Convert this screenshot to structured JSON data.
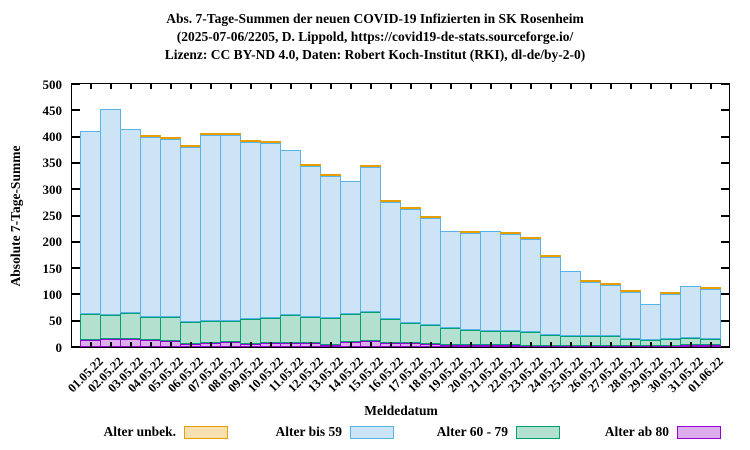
{
  "title": {
    "line1": "Abs. 7-Tage-Summen der neuen COVID-19 Infizierten in SK Rosenheim",
    "line2": "(2025-07-06/2205, D. Lippold, https://covid19-de-stats.sourceforge.io/",
    "line3": "Lizenz: CC BY-ND 4.0, Daten: Robert Koch-Institut (RKI), dl-de/by-2-0)"
  },
  "chart_data": {
    "type": "bar",
    "stacked": true,
    "title": "Abs. 7-Tage-Summen der neuen COVID-19 Infizierten in SK Rosenheim",
    "xlabel": "Meldedatum",
    "ylabel": "Absolute 7-Tage-Summe",
    "ylim": [
      0,
      500
    ],
    "yticks": [
      0,
      50,
      100,
      150,
      200,
      250,
      300,
      350,
      400,
      450,
      500
    ],
    "grid": false,
    "legend_position": "bottom",
    "categories": [
      "01.05.22",
      "02.05.22",
      "03.05.22",
      "04.05.22",
      "05.05.22",
      "06.05.22",
      "07.05.22",
      "08.05.22",
      "09.05.22",
      "10.05.22",
      "11.05.22",
      "12.05.22",
      "13.05.22",
      "14.05.22",
      "15.05.22",
      "16.05.22",
      "17.05.22",
      "18.05.22",
      "19.05.22",
      "20.05.22",
      "21.05.22",
      "22.05.22",
      "23.05.22",
      "24.05.22",
      "25.05.22",
      "26.05.22",
      "27.05.22",
      "28.05.22",
      "29.05.22",
      "30.05.22",
      "31.05.22",
      "01.06.22"
    ],
    "series": [
      {
        "name": "Alter unbek.",
        "fill": "#f6e0b0",
        "border": "#e69f00",
        "values": [
          0,
          0,
          0,
          2,
          2,
          2,
          2,
          2,
          2,
          2,
          0,
          2,
          2,
          0,
          2,
          2,
          2,
          2,
          0,
          2,
          0,
          2,
          2,
          2,
          0,
          2,
          2,
          2,
          0,
          2,
          0,
          2
        ]
      },
      {
        "name": "Alter bis 59",
        "fill": "#cce4f5",
        "border": "#56b4e9",
        "values": [
          348,
          392,
          349,
          343,
          339,
          333,
          354,
          354,
          336,
          331,
          314,
          288,
          270,
          253,
          276,
          223,
          216,
          203,
          184,
          184,
          189,
          183,
          178,
          149,
          123,
          103,
          97,
          89,
          68,
          85,
          98,
          95
        ]
      },
      {
        "name": "Alter 60 - 79",
        "fill": "#b4e0d0",
        "border": "#009e73",
        "values": [
          50,
          46,
          50,
          43,
          45,
          42,
          41,
          40,
          47,
          48,
          53,
          49,
          52,
          53,
          56,
          45,
          39,
          36,
          33,
          29,
          28,
          28,
          26,
          21,
          20,
          20,
          19,
          14,
          12,
          13,
          15,
          13
        ]
      },
      {
        "name": "Alter ab 80",
        "fill": "#dcaeec",
        "border": "#9400d3",
        "values": [
          13,
          15,
          15,
          14,
          12,
          6,
          8,
          9,
          6,
          8,
          8,
          8,
          4,
          9,
          11,
          8,
          7,
          6,
          4,
          3,
          3,
          3,
          2,
          2,
          1,
          1,
          1,
          2,
          2,
          2,
          3,
          3
        ]
      }
    ],
    "stack_order_bottom_to_top": [
      3,
      2,
      1,
      0
    ]
  }
}
